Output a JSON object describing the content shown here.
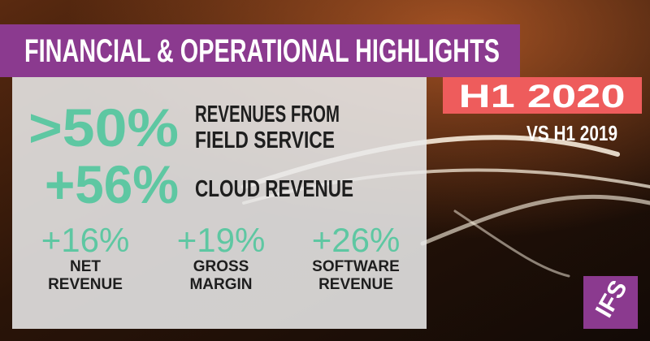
{
  "header": {
    "title": "FINANCIAL & OPERATIONAL HIGHLIGHTS"
  },
  "period": {
    "badge": "H1 2020",
    "comparison": "VS H1 2019"
  },
  "highlights": [
    {
      "value": ">50%",
      "label": [
        "REVENUES FROM",
        "FIELD SERVICE"
      ]
    },
    {
      "value": "+56%",
      "label": [
        "CLOUD REVENUE"
      ]
    }
  ],
  "metrics": [
    {
      "value": "+16%",
      "label": [
        "NET",
        "REVENUE"
      ]
    },
    {
      "value": "+19%",
      "label": [
        "GROSS",
        "MARGIN"
      ]
    },
    {
      "value": "+26%",
      "label": [
        "SOFTWARE",
        "REVENUE"
      ]
    }
  ],
  "logo": "IFS"
}
